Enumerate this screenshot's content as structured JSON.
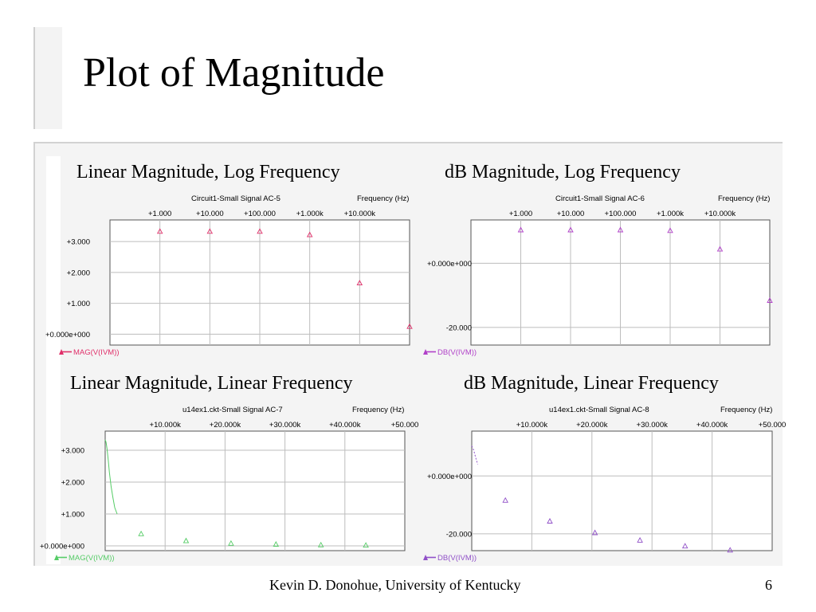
{
  "slide": {
    "title": "Plot of Magnitude",
    "footer": "Kevin D. Donohue, University of Kentucky",
    "page_number": "6"
  },
  "chart_data": [
    {
      "type": "scatter",
      "heading": "Linear Magnitude, Log Frequency",
      "title": "Circuit1-Small Signal AC-5",
      "xlabel": "Frequency   (Hz)",
      "xscale": "log",
      "xlim": [
        0.1,
        100000
      ],
      "ylim": [
        -0.35,
        3.7
      ],
      "xticks": [
        {
          "value": 1,
          "label": "+1.000"
        },
        {
          "value": 10,
          "label": "+10.000"
        },
        {
          "value": 100,
          "label": "+100.000"
        },
        {
          "value": 1000,
          "label": "+1.000k"
        },
        {
          "value": 10000,
          "label": "+10.000k"
        }
      ],
      "yticks": [
        {
          "value": 3,
          "label": "+3.000"
        },
        {
          "value": 2,
          "label": "+2.000"
        },
        {
          "value": 1,
          "label": "+1.000"
        },
        {
          "value": 0,
          "label": "+0.000e+000"
        }
      ],
      "series": [
        {
          "name": "MAG(V(IVM))",
          "color": "#e0306a",
          "marker": "triangle",
          "x": [
            1,
            10,
            100,
            1000,
            10000,
            100000
          ],
          "y": [
            3.33,
            3.33,
            3.33,
            3.22,
            1.66,
            0.25
          ]
        }
      ],
      "grid": true,
      "legend": "bottom-left"
    },
    {
      "type": "scatter",
      "heading": "dB Magnitude, Log Frequency",
      "title": "Circuit1-Small Signal AC-6",
      "xlabel": "Frequency   (Hz)",
      "xscale": "log",
      "xlim": [
        0.1,
        100000
      ],
      "ylim": [
        -25.5,
        13.5
      ],
      "xticks": [
        {
          "value": 1,
          "label": "+1.000"
        },
        {
          "value": 10,
          "label": "+10.000"
        },
        {
          "value": 100,
          "label": "+100.000"
        },
        {
          "value": 1000,
          "label": "+1.000k"
        },
        {
          "value": 10000,
          "label": "+10.000k"
        }
      ],
      "yticks": [
        {
          "value": 0,
          "label": "+0.000e+000"
        },
        {
          "value": -20,
          "label": "-20.000"
        }
      ],
      "series": [
        {
          "name": "DB(V(IVM))",
          "color": "#b040c8",
          "marker": "triangle",
          "x": [
            1,
            10,
            100,
            1000,
            10000,
            100000
          ],
          "y": [
            10.4,
            10.4,
            10.4,
            10.2,
            4.4,
            -11.6
          ]
        }
      ],
      "grid": true,
      "legend": "bottom-left"
    },
    {
      "type": "scatter",
      "heading": "Linear Magnitude, Linear Frequency",
      "title": "u14ex1.ckt-Small Signal AC-7",
      "xlabel": "Frequency   (Hz)",
      "xscale": "linear",
      "xlim": [
        0,
        50000
      ],
      "ylim": [
        -0.15,
        3.6
      ],
      "xticks": [
        {
          "value": 10000,
          "label": "+10.000k"
        },
        {
          "value": 20000,
          "label": "+20.000k"
        },
        {
          "value": 30000,
          "label": "+30.000k"
        },
        {
          "value": 40000,
          "label": "+40.000k"
        },
        {
          "value": 50000,
          "label": "+50.000"
        }
      ],
      "yticks": [
        {
          "value": 3,
          "label": "+3.000"
        },
        {
          "value": 2,
          "label": "+2.000"
        },
        {
          "value": 1,
          "label": "+1.000"
        },
        {
          "value": 0,
          "label": "+0.000e+000"
        }
      ],
      "series": [
        {
          "name": "MAG(V(IVM))",
          "color": "#55cc66",
          "marker": "triangle",
          "curve_x": [
            0,
            150,
            300,
            500,
            700,
            1000,
            1300,
            1600,
            2000
          ],
          "curve_y": [
            3.33,
            3.25,
            3.05,
            2.7,
            2.3,
            1.85,
            1.5,
            1.2,
            1.0
          ],
          "x": [
            6000,
            13500,
            21000,
            28500,
            36000,
            43500
          ],
          "y": [
            0.38,
            0.16,
            0.08,
            0.05,
            0.03,
            0.02
          ]
        }
      ],
      "grid": true,
      "legend": "bottom-left"
    },
    {
      "type": "scatter",
      "heading": "dB Magnitude, Linear Frequency",
      "title": "u14ex1.ckt-Small Signal AC-8",
      "xlabel": "Frequency   (Hz)",
      "xscale": "linear",
      "xlim": [
        0,
        50000
      ],
      "ylim": [
        -25.8,
        15.5
      ],
      "xticks": [
        {
          "value": 10000,
          "label": "+10.000k"
        },
        {
          "value": 20000,
          "label": "+20.000k"
        },
        {
          "value": 30000,
          "label": "+30.000k"
        },
        {
          "value": 40000,
          "label": "+40.000k"
        },
        {
          "value": 50000,
          "label": "+50.000"
        }
      ],
      "yticks": [
        {
          "value": 0,
          "label": "+0.000e+000"
        },
        {
          "value": -20,
          "label": "-20.000"
        }
      ],
      "series": [
        {
          "name": "DB(V(IVM))",
          "color": "#9050c8",
          "marker": "triangle",
          "curve_x": [
            0,
            300,
            700,
            1000
          ],
          "curve_y": [
            10.4,
            9.0,
            6.0,
            4.0
          ],
          "x": [
            5600,
            13000,
            20500,
            28000,
            35500,
            43000
          ],
          "y": [
            -8.4,
            -15.6,
            -19.6,
            -22.2,
            -24.2,
            -25.6
          ]
        }
      ],
      "grid": true,
      "legend": "bottom-left"
    }
  ]
}
